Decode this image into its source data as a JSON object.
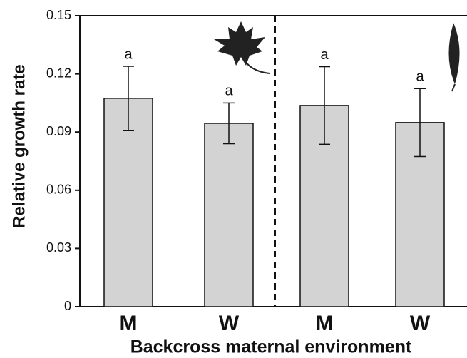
{
  "chart_data": {
    "type": "bar",
    "x_label": "Backcross maternal environment",
    "y_label": "Relative growth rate",
    "categories": [
      "M",
      "W",
      "M",
      "W"
    ],
    "values": [
      0.1074,
      0.0945,
      0.1037,
      0.0949
    ],
    "errors": [
      0.0165,
      0.0105,
      0.02,
      0.0175
    ],
    "letters": [
      "a",
      "a",
      "a",
      "a"
    ],
    "color": "#d3d3d3",
    "ylim": [
      0,
      0.15
    ],
    "yticks": [
      {
        "value": 0,
        "label": "0"
      },
      0.03,
      0.06,
      0.09,
      0.12,
      0.15
    ],
    "grid": false
  }
}
